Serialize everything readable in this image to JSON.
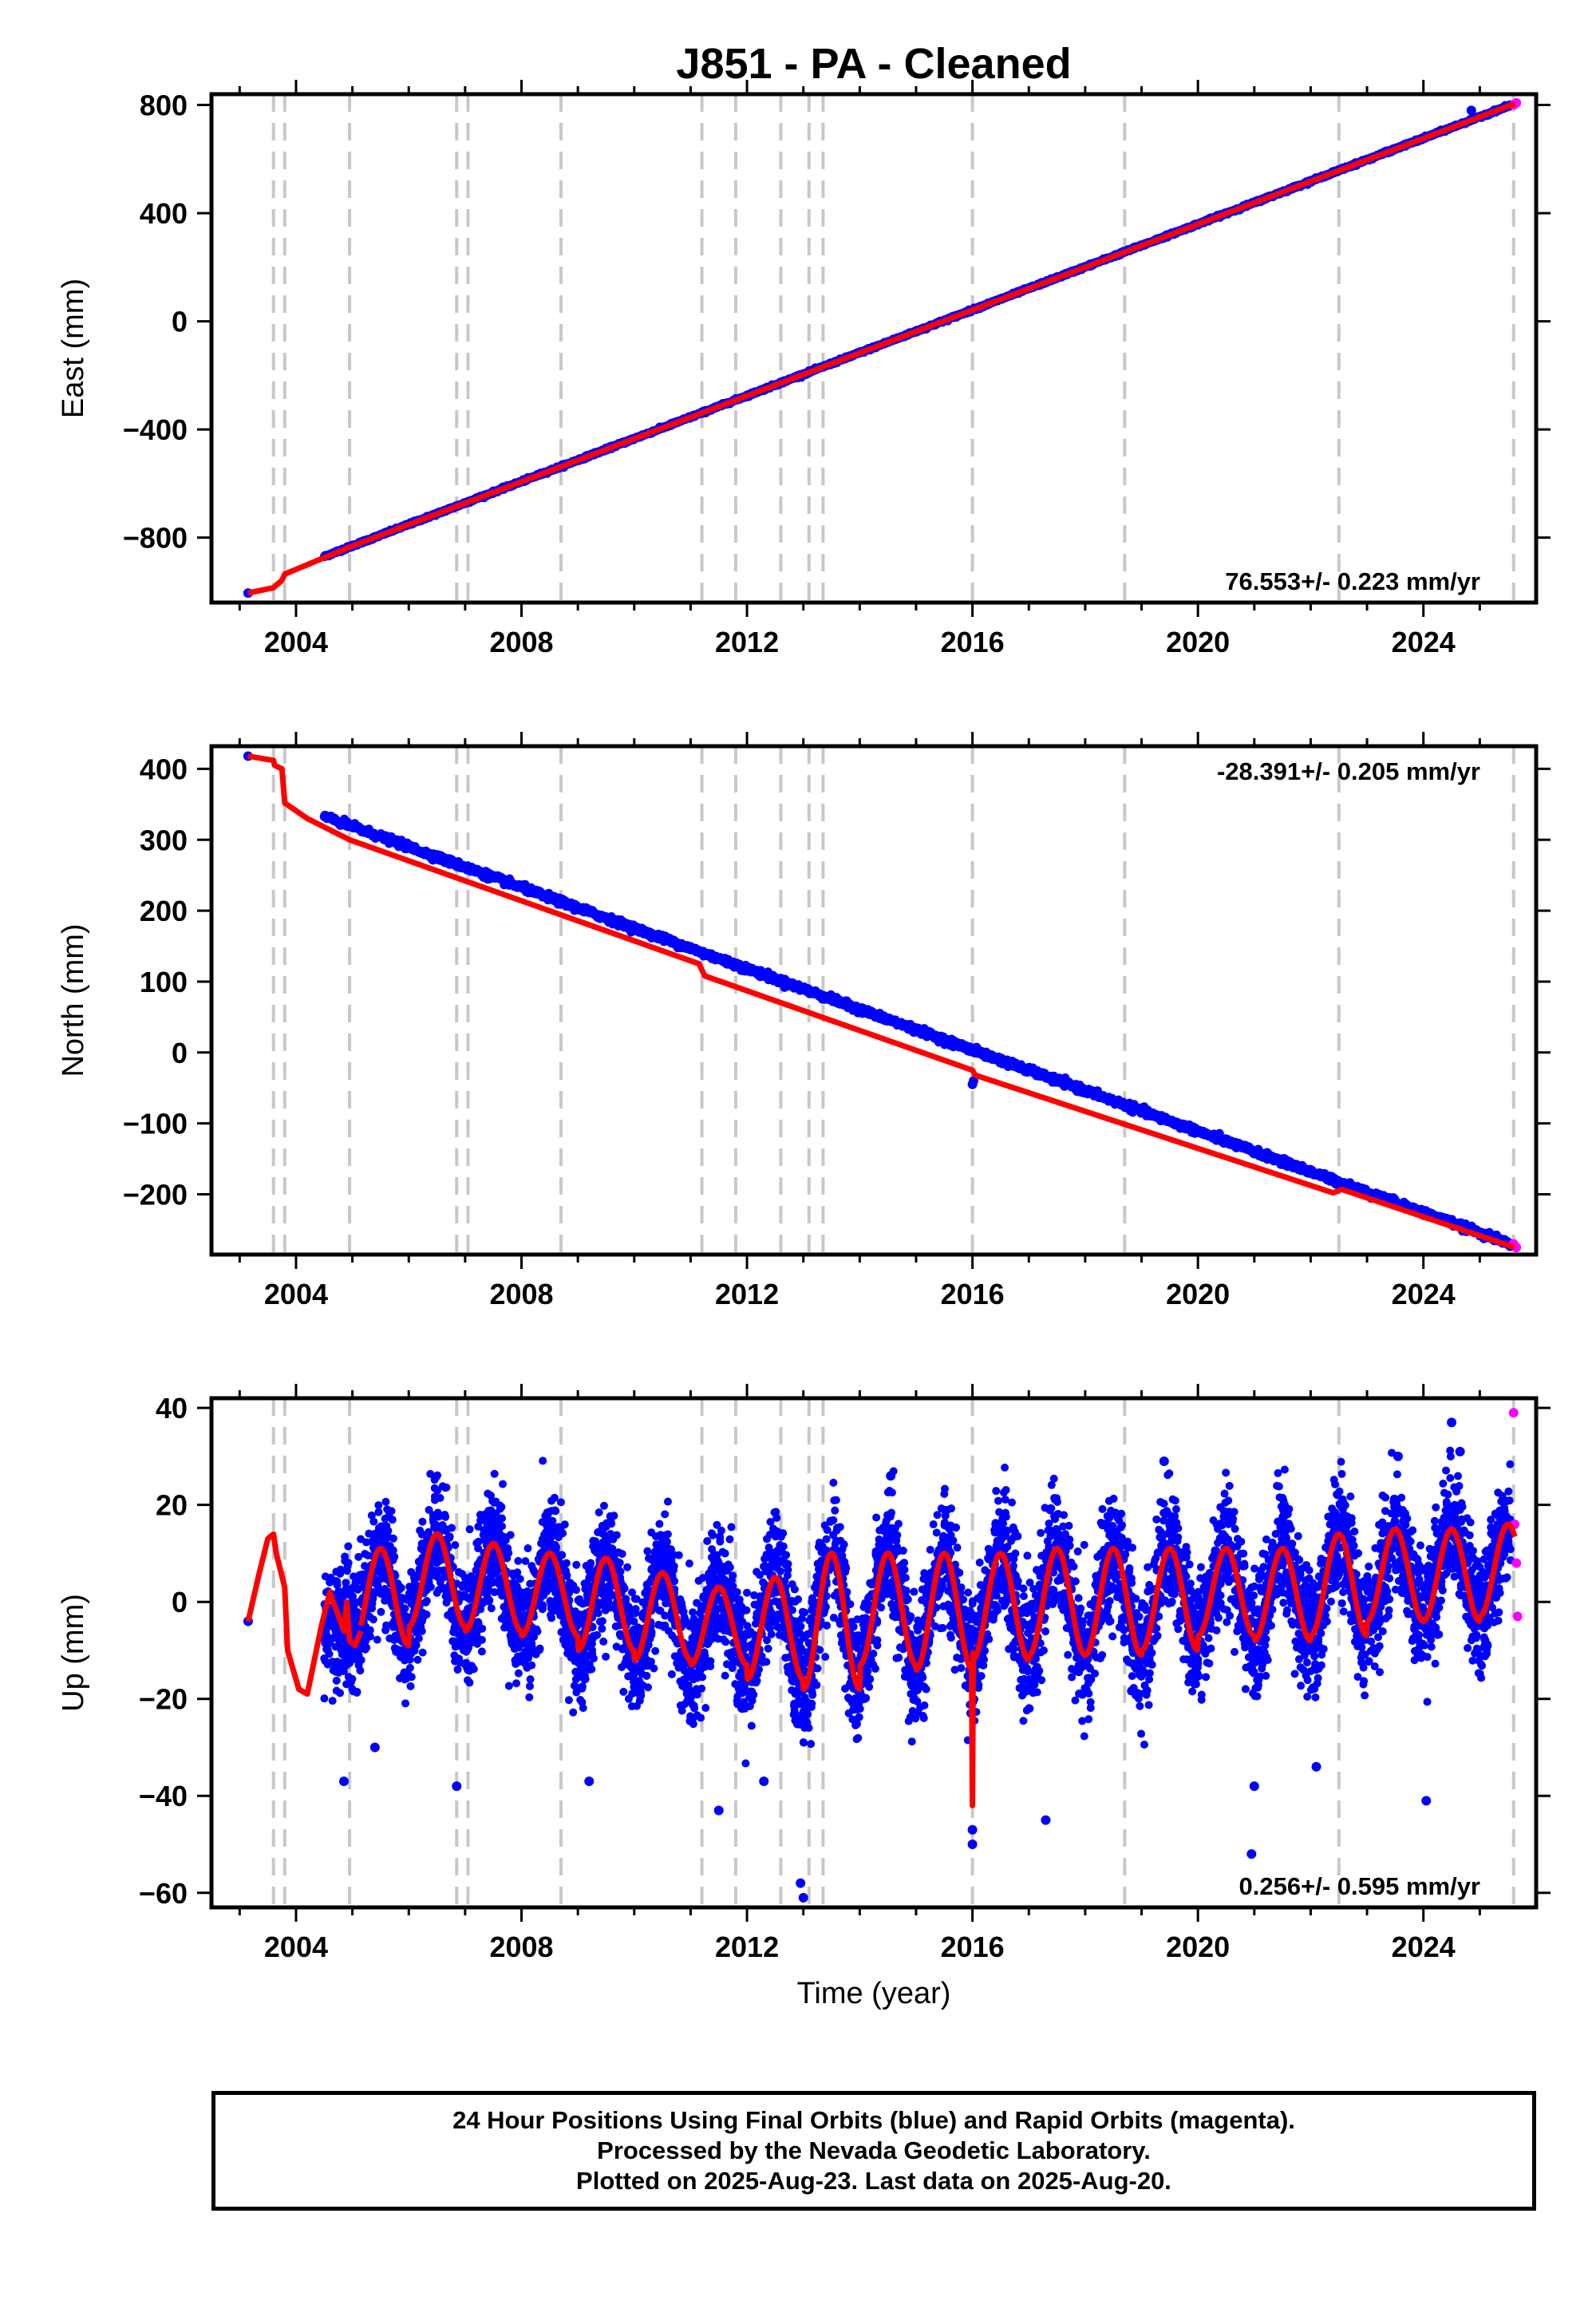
{
  "title": "J851  - PA - Cleaned",
  "xlabel": "Time (year)",
  "footer": {
    "line1": "24 Hour Positions Using Final Orbits (blue) and Rapid Orbits (magenta).",
    "line2": "Processed by the Nevada Geodetic Laboratory.",
    "line3": "Plotted on 2025-Aug-23. Last data on 2025-Aug-20."
  },
  "colors": {
    "final": "#0000ff",
    "rapid": "#ff00ff",
    "model": "#ff0000",
    "event_line": "#c8c8c8",
    "frame": "#000000"
  },
  "chart_data": [
    {
      "type": "scatter",
      "ylabel": "East (mm)",
      "rate": "76.553+/- 0.223 mm/yr",
      "rate_position": "bottom-right",
      "xlim": [
        2002.5,
        2026.0
      ],
      "ylim": [
        -1040,
        840
      ],
      "x_ticks": [
        2004,
        2008,
        2012,
        2016,
        2020,
        2024
      ],
      "y_ticks": [
        -800,
        -400,
        0,
        400,
        800
      ],
      "event_lines": [
        2003.6,
        2003.8,
        2004.95,
        2006.85,
        2007.05,
        2008.7,
        2011.2,
        2011.8,
        2012.6,
        2013.1,
        2013.35,
        2016.0,
        2018.7,
        2022.5,
        2025.6
      ],
      "series": [
        {
          "type": "points",
          "x": [
            2003.15
          ],
          "y": [
            -1005
          ]
        },
        {
          "type": "linear",
          "x_start": 2004.5,
          "x_end": 2025.55,
          "y_start": -870,
          "y_end": 800
        },
        {
          "type": "points",
          "x": [
            2024.85
          ],
          "y": [
            780
          ]
        },
        {
          "type": "points",
          "x": [
            2025.6,
            2025.65
          ],
          "y": [
            800,
            808
          ]
        },
        {
          "type": "polyline",
          "x": [
            2003.15,
            2003.6,
            2003.75,
            2003.8,
            2004.95,
            2025.62
          ],
          "y": [
            -1005,
            -985,
            -958,
            -935,
            -835,
            805
          ]
        }
      ]
    },
    {
      "type": "scatter",
      "ylabel": "North (mm)",
      "rate": "-28.391+/- 0.205 mm/yr",
      "rate_position": "top-right",
      "xlim": [
        2002.5,
        2026.0
      ],
      "ylim": [
        -285,
        432
      ],
      "x_ticks": [
        2004,
        2008,
        2012,
        2016,
        2020,
        2024
      ],
      "y_ticks": [
        -200,
        -100,
        0,
        100,
        200,
        300,
        400
      ],
      "event_lines": [
        2003.6,
        2003.8,
        2004.95,
        2006.85,
        2007.05,
        2008.7,
        2011.2,
        2011.8,
        2012.6,
        2013.1,
        2013.35,
        2016.0,
        2018.7,
        2022.5,
        2025.6
      ],
      "series": [
        {
          "type": "points",
          "x": [
            2003.15
          ],
          "y": [
            418
          ]
        },
        {
          "type": "linear",
          "x_start": 2004.5,
          "x_end": 2025.55,
          "y_start": 333,
          "y_end": -270
        },
        {
          "type": "points",
          "x": [
            2016.0,
            2016.02
          ],
          "y": [
            -45,
            -40
          ]
        },
        {
          "type": "points",
          "x": [
            2025.6,
            2025.65
          ],
          "y": [
            -270,
            -275
          ]
        },
        {
          "type": "polyline",
          "x": [
            2003.15,
            2003.6,
            2003.62,
            2003.75,
            2003.8,
            2004.2,
            2004.95,
            2011.15,
            2011.25,
            2016.0,
            2016.05,
            2022.4,
            2022.55,
            2025.62
          ],
          "y": [
            418,
            412,
            405,
            400,
            352,
            330,
            300,
            125,
            108,
            -25,
            -32,
            -198,
            -193,
            -275
          ]
        }
      ]
    },
    {
      "type": "scatter",
      "ylabel": "Up (mm)",
      "rate": "0.256+/- 0.595 mm/yr",
      "rate_position": "bottom-right",
      "xlim": [
        2002.5,
        2026.0
      ],
      "ylim": [
        -63,
        42
      ],
      "x_ticks": [
        2004,
        2008,
        2012,
        2016,
        2020,
        2024
      ],
      "y_ticks": [
        -60,
        -40,
        -20,
        0,
        20,
        40
      ],
      "event_lines": [
        2003.6,
        2003.8,
        2004.95,
        2006.85,
        2007.05,
        2008.7,
        2011.2,
        2011.8,
        2012.6,
        2013.1,
        2013.35,
        2016.0,
        2018.7,
        2022.5,
        2025.6
      ],
      "series": [
        {
          "type": "points",
          "x": [
            2003.15
          ],
          "y": [
            -4
          ]
        },
        {
          "type": "noise",
          "x_start": 2004.5,
          "x_end": 2025.55,
          "mean": 0,
          "seasonal_amplitude": 9,
          "spread": 6
        },
        {
          "type": "points",
          "x": [
            2004.85,
            2005.4,
            2006.85,
            2009.2,
            2011.5,
            2012.3,
            2012.95,
            2013.0,
            2016.0,
            2016.0,
            2017.3,
            2020.95,
            2021.0,
            2022.1,
            2024.05,
            2024.5
          ],
          "y": [
            -37,
            -30,
            -38,
            -37,
            -43,
            -37,
            -58,
            -61,
            -47,
            -50,
            -45,
            -52,
            -38,
            -34,
            -41,
            37
          ]
        },
        {
          "type": "points",
          "x": [
            2025.6,
            2025.62,
            2025.65,
            2025.67
          ],
          "y": [
            39,
            16,
            8,
            -3
          ]
        },
        {
          "type": "points",
          "x": [
            2014.55,
            2019.4,
            2023.55,
            2024.65
          ],
          "y": [
            26,
            29,
            30,
            31
          ]
        },
        {
          "type": "polyline",
          "x": [
            2003.15,
            2003.35,
            2003.5,
            2003.6,
            2003.65,
            2003.8,
            2003.85,
            2004.05,
            2004.2,
            2004.45,
            2004.6,
            2004.85,
            2004.9,
            2004.95,
            2005.05,
            2005.15
          ],
          "y": [
            -4,
            6,
            13,
            14,
            10,
            3,
            -10,
            -18,
            -19,
            -5,
            2,
            -6,
            0,
            -8,
            -9,
            -6
          ]
        },
        {
          "type": "seasonal",
          "x_start": 2005.15,
          "x_end": 2025.62,
          "base_amp": 8,
          "base_mean": 2,
          "peaks": [
            2005.5,
            2006.5,
            2007.5,
            2008.5,
            2009.5,
            2010.5,
            2011.5,
            2012.5,
            2013.5,
            2014.5,
            2015.5,
            2016.5,
            2017.5,
            2018.5,
            2019.5,
            2020.5,
            2021.5,
            2022.5,
            2023.5,
            2024.5,
            2025.5
          ],
          "peak_values": [
            11,
            14,
            12,
            10,
            9,
            6,
            3,
            5,
            10,
            10,
            10,
            10,
            11,
            11,
            11,
            11,
            11,
            14,
            15,
            15,
            16
          ],
          "trough_values": [
            -9,
            -5,
            -6,
            -7,
            -10,
            -12,
            -13,
            -16,
            -18,
            -13,
            -14,
            -12,
            -11,
            -11,
            -10,
            -7,
            -8,
            -7,
            -4,
            -4,
            -3
          ],
          "spike": {
            "x": 2016.0,
            "y": -42
          }
        }
      ]
    }
  ]
}
